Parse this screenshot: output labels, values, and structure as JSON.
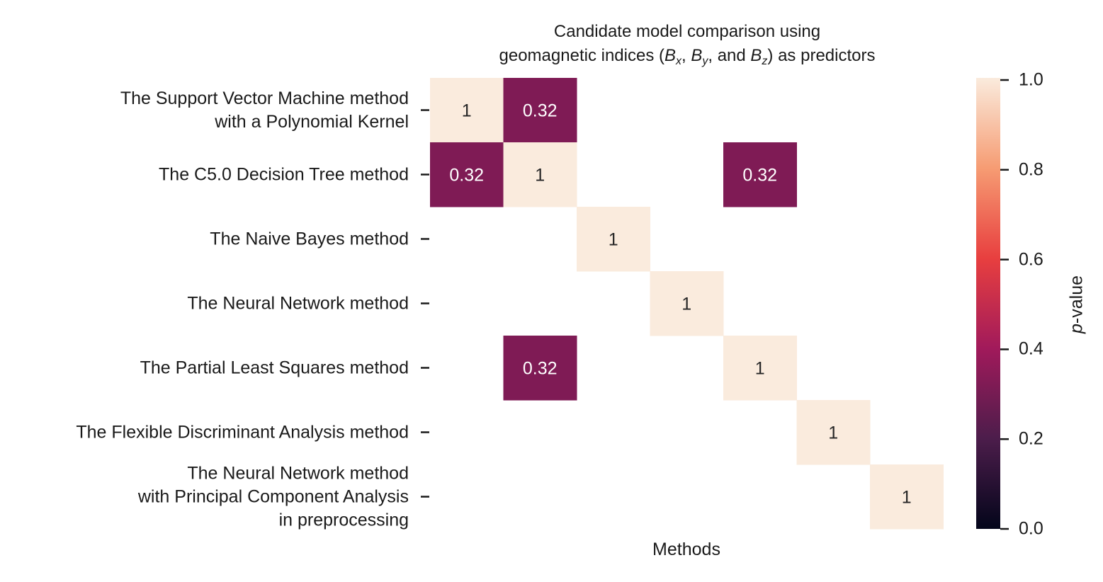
{
  "chart_data": {
    "type": "heatmap",
    "title_line1": "Candidate model comparison using",
    "title_line2_prefix": "geomagnetic indices (",
    "title_line2_mid1": ", ",
    "title_line2_mid2": ", and ",
    "title_line2_suffix": ") as predictors",
    "title_var_base": "B",
    "title_var_subs": [
      "x",
      "y",
      "z"
    ],
    "xlabel": "Methods",
    "rows": [
      {
        "lines": [
          "The Support Vector Machine method",
          "with a Polynomial Kernel"
        ]
      },
      {
        "lines": [
          "The C5.0 Decision Tree method"
        ]
      },
      {
        "lines": [
          "The Naive Bayes method"
        ]
      },
      {
        "lines": [
          "The Neural Network method"
        ]
      },
      {
        "lines": [
          "The Partial Least Squares method"
        ]
      },
      {
        "lines": [
          "The Flexible Discriminant Analysis method"
        ]
      },
      {
        "lines": [
          "The Neural Network method",
          "with Principal Component Analysis",
          "in preprocessing"
        ]
      }
    ],
    "n_cols": 7,
    "values": [
      [
        1,
        0.32,
        null,
        null,
        null,
        null,
        null
      ],
      [
        0.32,
        1,
        null,
        null,
        0.32,
        null,
        null
      ],
      [
        null,
        null,
        1,
        null,
        null,
        null,
        null
      ],
      [
        null,
        null,
        null,
        1,
        null,
        null,
        null
      ],
      [
        null,
        0.32,
        null,
        null,
        1,
        null,
        null
      ],
      [
        null,
        null,
        null,
        null,
        null,
        1,
        null
      ],
      [
        null,
        null,
        null,
        null,
        null,
        null,
        1
      ]
    ],
    "cell_labels": [
      [
        "1",
        "0.32",
        "",
        "",
        "",
        "",
        ""
      ],
      [
        "0.32",
        "1",
        "",
        "",
        "0.32",
        "",
        ""
      ],
      [
        "",
        "",
        "1",
        "",
        "",
        "",
        ""
      ],
      [
        "",
        "",
        "",
        "1",
        "",
        "",
        ""
      ],
      [
        "",
        "0.32",
        "",
        "",
        "1",
        "",
        ""
      ],
      [
        "",
        "",
        "",
        "",
        "",
        "1",
        ""
      ],
      [
        "",
        "",
        "",
        "",
        "",
        "",
        "1"
      ]
    ],
    "colorbar": {
      "label_italic": "p",
      "label_rest": "-value",
      "range": [
        0,
        1
      ],
      "ticks": [
        "0.0",
        "0.2",
        "0.4",
        "0.6",
        "0.8",
        "1.0"
      ],
      "colormap": "rocket",
      "colors": [
        "#03051a",
        "#4c1d4b",
        "#a11a5b",
        "#e83f3f",
        "#f69c73",
        "#faebdd"
      ]
    }
  }
}
